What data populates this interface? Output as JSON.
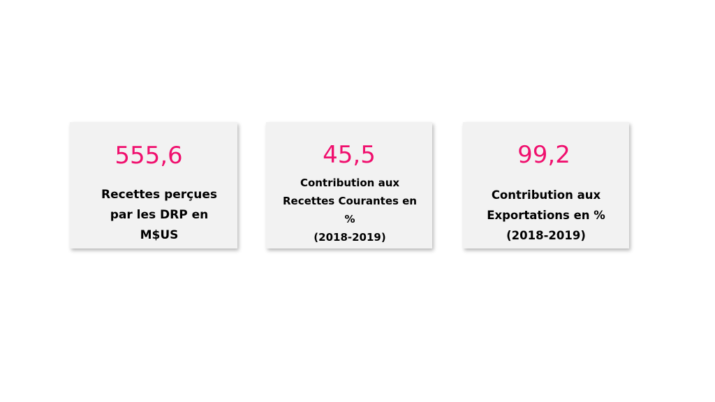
{
  "cards": [
    {
      "value": "555,6",
      "label": "Recettes perçues\npar les DRP en\nM$US"
    },
    {
      "value": "45,5",
      "label": "Contribution aux\nRecettes Courantes en\n%\n(2018-2019)"
    },
    {
      "value": "99,2",
      "label": "Contribution aux\nExportations en %\n(2018-2019)"
    }
  ],
  "colors": {
    "value": "#f0106e",
    "card_background": "#f2f2f2",
    "label": "#000000"
  }
}
